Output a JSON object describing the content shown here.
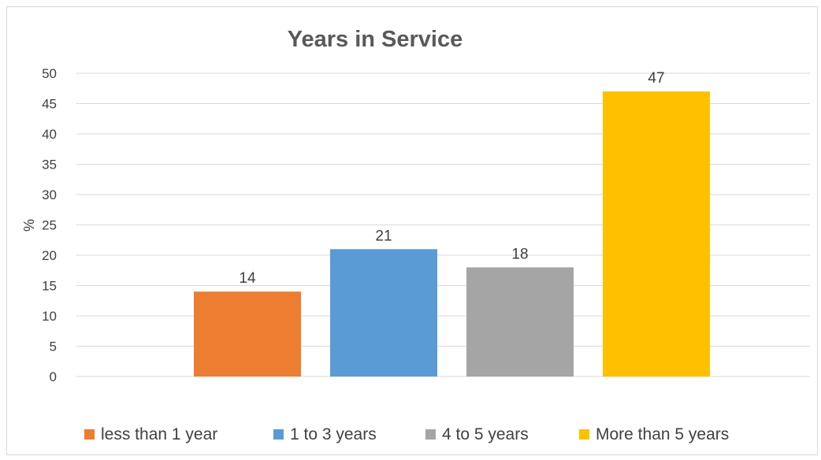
{
  "chart_data": {
    "type": "bar",
    "title": "Years in Service",
    "ylabel": "%",
    "xlabel": "",
    "ylim": [
      0,
      50
    ],
    "yticks": [
      0,
      5,
      10,
      15,
      20,
      25,
      30,
      35,
      40,
      45,
      50
    ],
    "grid": true,
    "legend_position": "bottom",
    "series": [
      {
        "name": "less than 1 year",
        "value": 14,
        "color": "#ED7D31"
      },
      {
        "name": "1 to 3 years",
        "value": 21,
        "color": "#5B9BD5"
      },
      {
        "name": "4 to 5 years",
        "value": 18,
        "color": "#A5A5A5"
      },
      {
        "name": "More than 5 years",
        "value": 47,
        "color": "#FFC000"
      }
    ]
  }
}
